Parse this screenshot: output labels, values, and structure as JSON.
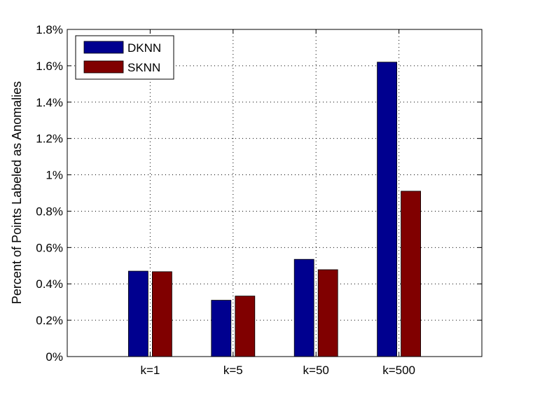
{
  "chart_data": {
    "type": "bar",
    "categories": [
      "k=1",
      "k=5",
      "k=50",
      "k=500"
    ],
    "series": [
      {
        "name": "DKNN",
        "values": [
          0.47,
          0.31,
          0.535,
          1.62
        ],
        "color": "#00008f"
      },
      {
        "name": "SKNN",
        "values": [
          0.467,
          0.333,
          0.478,
          0.91
        ],
        "color": "#800000"
      }
    ],
    "y_ticks": [
      "0%",
      "0.2%",
      "0.4%",
      "0.6%",
      "0.8%",
      "1%",
      "1.2%",
      "1.4%",
      "1.6%",
      "1.8%"
    ],
    "ylabel": "Percent of Points Labeled as Anomalies",
    "xlabel": "",
    "ylim": [
      0,
      1.8
    ],
    "grid": true,
    "legend_position": "top-left"
  }
}
